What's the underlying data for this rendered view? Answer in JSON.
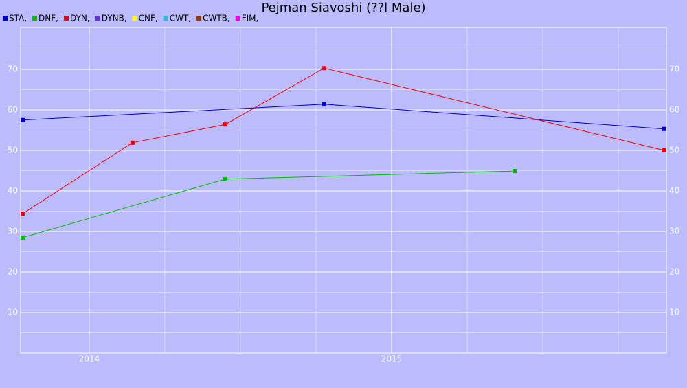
{
  "chart_data": {
    "type": "line",
    "title": "Pejman Siavoshi (??l Male)",
    "xlim": [
      2013.773,
      2015.909
    ],
    "xticks": [
      2014,
      2015
    ],
    "xminorticks": [
      2014.25,
      2014.5,
      2014.75,
      2015.25,
      2015.5,
      2015.75
    ],
    "ylim": [
      0,
      80
    ],
    "yticks": [
      10,
      20,
      30,
      40,
      50,
      60,
      70
    ],
    "yminorticks": [
      5,
      15,
      25,
      35,
      45,
      55,
      65,
      75
    ],
    "grid": true,
    "series": [
      {
        "name": "STA,",
        "color": "#0000cc",
        "x": [
          2013.78,
          2014.777,
          2015.902
        ],
        "values": [
          57.5,
          61.4,
          55.3
        ]
      },
      {
        "name": "DNF,",
        "color": "#00bb00",
        "x": [
          2013.78,
          2014.45,
          2015.407
        ],
        "values": [
          28.5,
          42.9,
          44.9
        ]
      },
      {
        "name": "DYN,",
        "color": "#ee0000",
        "x": [
          2013.78,
          2014.143,
          2014.45,
          2014.777,
          2015.902
        ],
        "values": [
          34.4,
          51.9,
          56.4,
          70.3,
          50.0
        ]
      },
      {
        "name": "DYNB,",
        "color": "#6633dd",
        "x": [],
        "values": []
      },
      {
        "name": "CNF,",
        "color": "#ffff00",
        "x": [],
        "values": []
      },
      {
        "name": "CWT,",
        "color": "#33bbdd",
        "x": [],
        "values": []
      },
      {
        "name": "CWTB,",
        "color": "#993300",
        "x": [],
        "values": []
      },
      {
        "name": "FIM,",
        "color": "#ee00ee",
        "x": [],
        "values": []
      }
    ]
  }
}
